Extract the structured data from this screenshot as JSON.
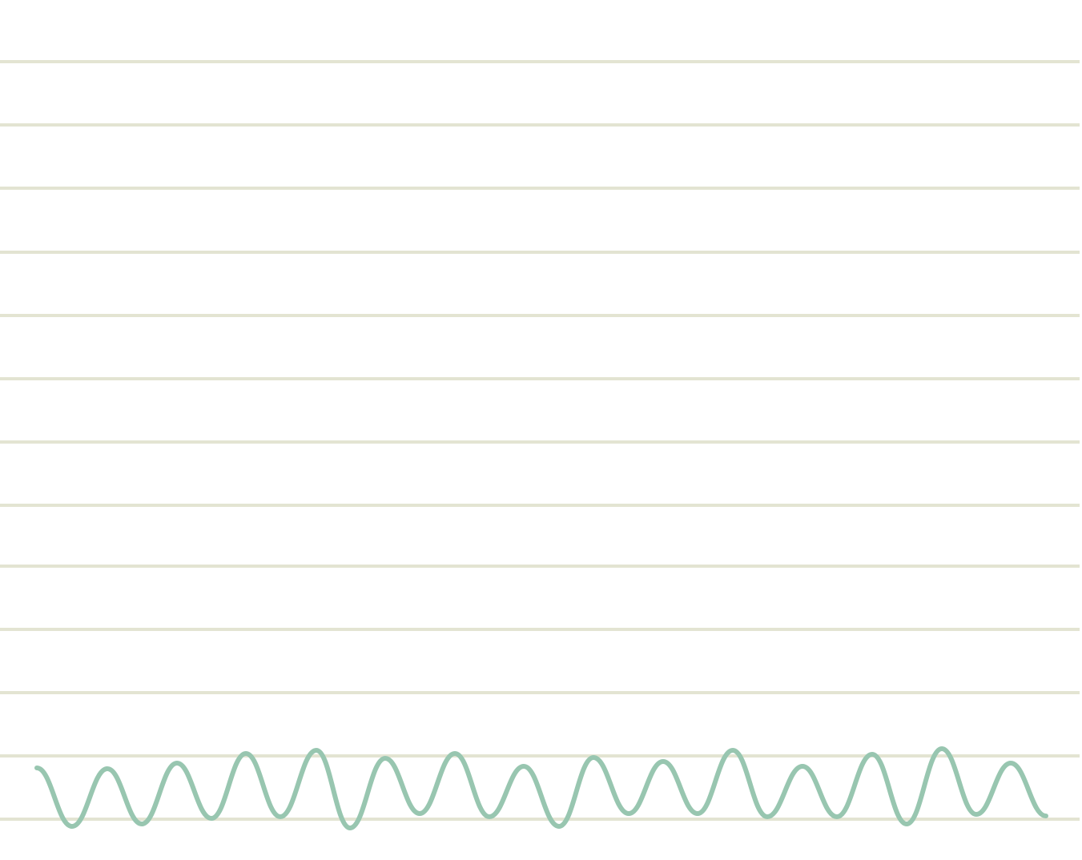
{
  "colors": {
    "background": "#ffffff",
    "rule_line": "#e3e4d2",
    "squiggle": "#98c6b0"
  },
  "ruled_line_count": 13,
  "squiggle_peak_count": 15
}
